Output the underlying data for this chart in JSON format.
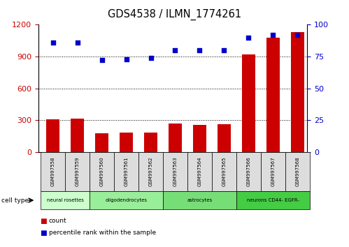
{
  "title": "GDS4538 / ILMN_1774261",
  "samples": [
    "GSM997558",
    "GSM997559",
    "GSM997560",
    "GSM997561",
    "GSM997562",
    "GSM997563",
    "GSM997564",
    "GSM997565",
    "GSM997566",
    "GSM997567",
    "GSM997568"
  ],
  "counts": [
    310,
    315,
    175,
    180,
    185,
    270,
    255,
    260,
    920,
    1080,
    1130
  ],
  "percentile_ranks": [
    86,
    86,
    72,
    73,
    74,
    80,
    80,
    80,
    90,
    92,
    92
  ],
  "cell_types": [
    {
      "label": "neural rosettes",
      "start": 0,
      "end": 2
    },
    {
      "label": "oligodendrocytes",
      "start": 2,
      "end": 5
    },
    {
      "label": "astrocytes",
      "start": 5,
      "end": 8
    },
    {
      "label": "neurons CD44- EGFR-",
      "start": 8,
      "end": 11
    }
  ],
  "ct_colors": [
    "#ccffcc",
    "#99ee99",
    "#77dd77",
    "#44cc44"
  ],
  "bar_color": "#cc0000",
  "dot_color": "#0000cc",
  "ylim_left": [
    0,
    1200
  ],
  "ylim_right": [
    0,
    100
  ],
  "yticks_left": [
    0,
    300,
    600,
    900,
    1200
  ],
  "yticks_right": [
    0,
    25,
    50,
    75,
    100
  ],
  "grid_values": [
    300,
    600,
    900
  ],
  "sample_box_color": "#dddddd",
  "xlim": [
    -0.6,
    10.4
  ]
}
